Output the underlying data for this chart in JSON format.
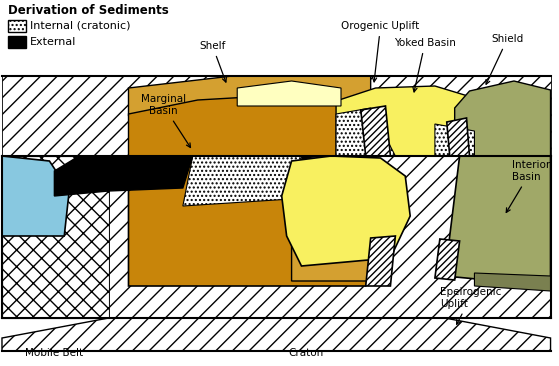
{
  "legend_title": "Derivation of Sediments",
  "legend_internal_label": "Internal (cratonic)",
  "legend_external_label": "External",
  "label_mobile_belt": "Mobile Belt",
  "label_craton": "Craton",
  "label_marginal_basin": "Marginal\nBasin",
  "label_shelf": "Shelf",
  "label_orogenic_uplift": "Orogenic Uplift",
  "label_yoked_basin": "Yoked Basin",
  "label_shield": "Shield",
  "label_interior_basin": "Interior\nBasin",
  "label_epeirogenic_uplift": "Epeirogenic\nUplift",
  "color_orange": "#C8850A",
  "color_lt_orange": "#D4A030",
  "color_yellow": "#F8F060",
  "color_lt_yellow": "#FFFFC0",
  "color_olive": "#7A8050",
  "color_lt_olive": "#A0A868",
  "color_blue": "#88C8E0",
  "color_black": "#000000",
  "color_white": "#FFFFFF",
  "color_bg": "#FFFFFF"
}
